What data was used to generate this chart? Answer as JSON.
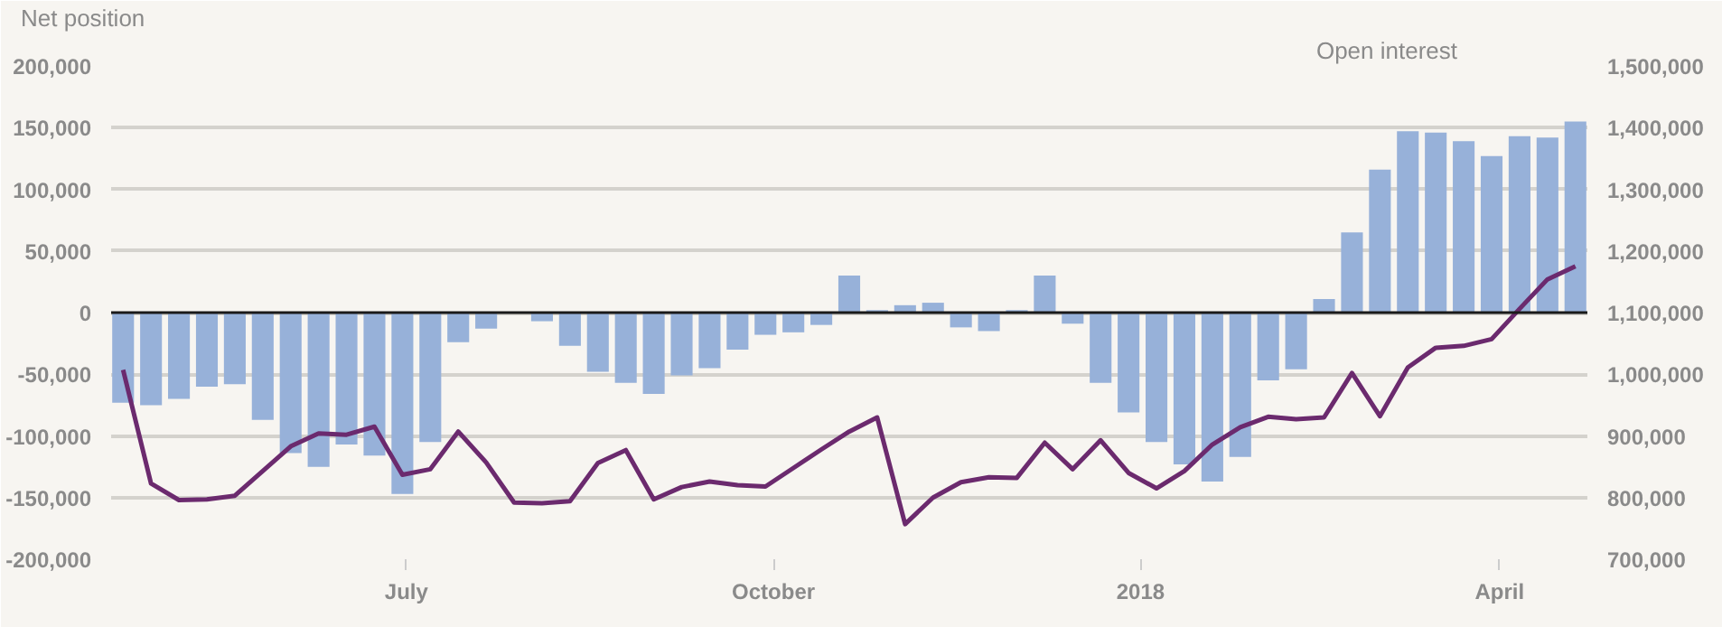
{
  "chart_data": {
    "type": "bar",
    "ylabel": "Net position",
    "y2label": "Open interest",
    "x": [
      "2017-04-21",
      "2017-04-28",
      "2017-05-05",
      "2017-05-12",
      "2017-05-19",
      "2017-05-26",
      "2017-06-02",
      "2017-06-09",
      "2017-06-16",
      "2017-06-23",
      "2017-06-30",
      "2017-07-07",
      "2017-07-14",
      "2017-07-21",
      "2017-07-28",
      "2017-08-04",
      "2017-08-11",
      "2017-08-18",
      "2017-08-25",
      "2017-09-01",
      "2017-09-08",
      "2017-09-15",
      "2017-09-22",
      "2017-09-29",
      "2017-10-06",
      "2017-10-13",
      "2017-10-20",
      "2017-10-27",
      "2017-11-03",
      "2017-11-10",
      "2017-11-17",
      "2017-11-24",
      "2017-12-01",
      "2017-12-08",
      "2017-12-15",
      "2017-12-22",
      "2017-12-29",
      "2018-01-05",
      "2018-01-12",
      "2018-01-19",
      "2018-01-26",
      "2018-02-02",
      "2018-02-09",
      "2018-02-16",
      "2018-02-23",
      "2018-03-02",
      "2018-03-09",
      "2018-03-16",
      "2018-03-23",
      "2018-03-30",
      "2018-04-06",
      "2018-04-13",
      "2018-04-20"
    ],
    "series": [
      {
        "color": "#97b1d9",
        "values": [
          -73000,
          -75000,
          -70000,
          -60000,
          -58000,
          -87000,
          -114000,
          -125000,
          -107000,
          -116000,
          -147000,
          -105000,
          -24000,
          -13000,
          0,
          -7000,
          -27000,
          -48000,
          -57000,
          -66000,
          -51000,
          -45000,
          -30000,
          -18000,
          -16000,
          -10000,
          30000,
          2000,
          6000,
          8000,
          -12000,
          -15000,
          2000,
          30000,
          -9000,
          -57000,
          -81000,
          -105000,
          -123000,
          -137000,
          -117000,
          -55000,
          -46000,
          11000,
          65000,
          116000,
          147000,
          146000,
          139000,
          127000,
          143000,
          142000,
          155000
        ]
      },
      {
        "type": "line",
        "axis": "y2",
        "color": "#6b2a6e",
        "values": [
          1007000,
          823000,
          796000,
          797000,
          803000,
          843000,
          883000,
          904000,
          902000,
          915000,
          837000,
          846000,
          907000,
          857000,
          792000,
          791000,
          794000,
          856000,
          877000,
          797000,
          817000,
          826000,
          820000,
          818000,
          848000,
          878000,
          907000,
          930000,
          757000,
          800000,
          825000,
          833000,
          832000,
          889000,
          846000,
          893000,
          840000,
          815000,
          843000,
          886000,
          914000,
          931000,
          927000,
          930000,
          1002000,
          932000,
          1011000,
          1043000,
          1046000,
          1057000,
          1106000,
          1154000,
          1175000
        ]
      }
    ],
    "xlim": [
      "2017-04-18",
      "2018-04-23"
    ],
    "xticks": [
      {
        "value": "2017-07-01",
        "label": "July"
      },
      {
        "value": "2017-10-01",
        "label": "October"
      },
      {
        "value": "2018-01-01",
        "label": "2018"
      },
      {
        "value": "2018-04-01",
        "label": "April"
      }
    ],
    "ylim": [
      -200000,
      200000
    ],
    "yticks": [
      {
        "value": -200000,
        "label": "-200,000"
      },
      {
        "value": -150000,
        "label": "-150,000"
      },
      {
        "value": -100000,
        "label": "-100,000"
      },
      {
        "value": -50000,
        "label": "-50,000"
      },
      0,
      {
        "value": 50000,
        "label": "50,000"
      },
      {
        "value": 100000,
        "label": "100,000"
      },
      {
        "value": 150000,
        "label": "150,000"
      },
      {
        "value": 200000,
        "label": "200,000"
      }
    ],
    "y2lim": [
      700000,
      1500000
    ],
    "y2ticks": [
      {
        "value": 700000,
        "label": "700,000"
      },
      {
        "value": 800000,
        "label": "800,000"
      },
      {
        "value": 900000,
        "label": "900,000"
      },
      {
        "value": 1000000,
        "label": "1,000,000"
      },
      {
        "value": 1100000,
        "label": "1,100,000"
      },
      {
        "value": 1200000,
        "label": "1,200,000"
      },
      {
        "value": 1300000,
        "label": "1,300,000"
      },
      {
        "value": 1400000,
        "label": "1,400,000"
      },
      {
        "value": 1500000,
        "label": "1,500,000"
      }
    ],
    "ref_lines": [
      {
        "axis": "y",
        "value": 0,
        "color": "#1a1a1a"
      }
    ],
    "grid": "y"
  }
}
